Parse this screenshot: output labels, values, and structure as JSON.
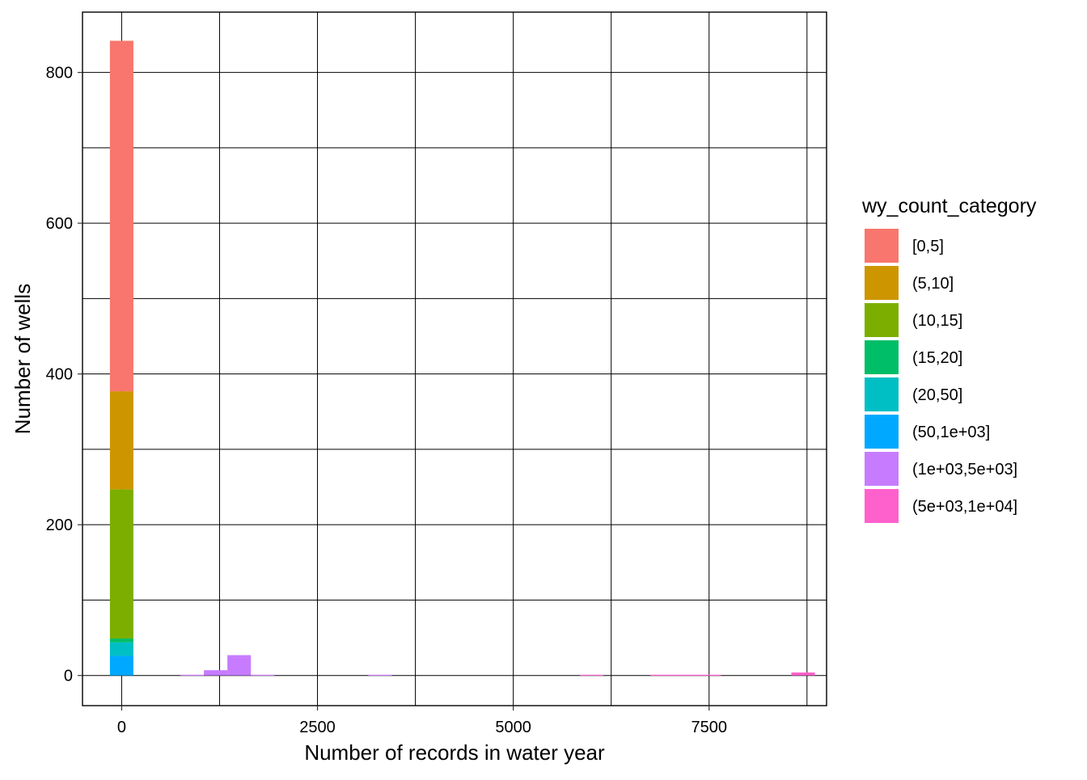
{
  "chart_data": {
    "type": "bar",
    "subtype": "stacked-histogram",
    "title": "",
    "xlabel": "Number of records in water year",
    "ylabel": "Number of wells",
    "xlim": [
      -500,
      9000
    ],
    "ylim": [
      -40,
      880
    ],
    "x_ticks": [
      0,
      2500,
      5000,
      7500
    ],
    "x_tick_labels": [
      "0",
      "2500",
      "5000",
      "7500"
    ],
    "y_ticks": [
      0,
      200,
      400,
      600,
      800
    ],
    "y_tick_labels": [
      "0",
      "200",
      "400",
      "600",
      "800"
    ],
    "grid": true,
    "legend_position": "right",
    "legend_title": "wy_count_category",
    "bin_width": 300,
    "categories": [
      {
        "label": "[0,5]",
        "color": "#F8766D"
      },
      {
        "label": "(5,10]",
        "color": "#CD9600"
      },
      {
        "label": "(10,15]",
        "color": "#7CAE00"
      },
      {
        "label": "(15,20]",
        "color": "#00BE67"
      },
      {
        "label": "(20,50]",
        "color": "#00BFC4"
      },
      {
        "label": "(50,1e+03]",
        "color": "#00A9FF"
      },
      {
        "label": "(1e+03,5e+03]",
        "color": "#C77CFF"
      },
      {
        "label": "(5e+03,1e+04]",
        "color": "#FF61CC"
      }
    ],
    "bins": [
      {
        "x": 0,
        "counts": [
          465,
          130,
          198,
          5,
          18,
          26,
          0,
          0
        ]
      },
      {
        "x": 900,
        "counts": [
          0,
          0,
          0,
          0,
          0,
          0,
          1,
          0
        ]
      },
      {
        "x": 1200,
        "counts": [
          0,
          0,
          0,
          0,
          0,
          0,
          7,
          0
        ]
      },
      {
        "x": 1500,
        "counts": [
          0,
          0,
          0,
          0,
          0,
          0,
          27,
          0
        ]
      },
      {
        "x": 1800,
        "counts": [
          0,
          0,
          0,
          0,
          0,
          0,
          1,
          0
        ]
      },
      {
        "x": 3300,
        "counts": [
          0,
          0,
          0,
          0,
          0,
          0,
          1,
          0
        ]
      },
      {
        "x": 6000,
        "counts": [
          0,
          0,
          0,
          0,
          0,
          0,
          0,
          1
        ]
      },
      {
        "x": 6900,
        "counts": [
          0,
          0,
          0,
          0,
          0,
          0,
          0,
          1
        ]
      },
      {
        "x": 7200,
        "counts": [
          0,
          0,
          0,
          0,
          0,
          0,
          0,
          1
        ]
      },
      {
        "x": 7500,
        "counts": [
          0,
          0,
          0,
          0,
          0,
          0,
          0,
          1
        ]
      },
      {
        "x": 8700,
        "counts": [
          0,
          0,
          0,
          0,
          0,
          0,
          0,
          4
        ]
      }
    ]
  }
}
